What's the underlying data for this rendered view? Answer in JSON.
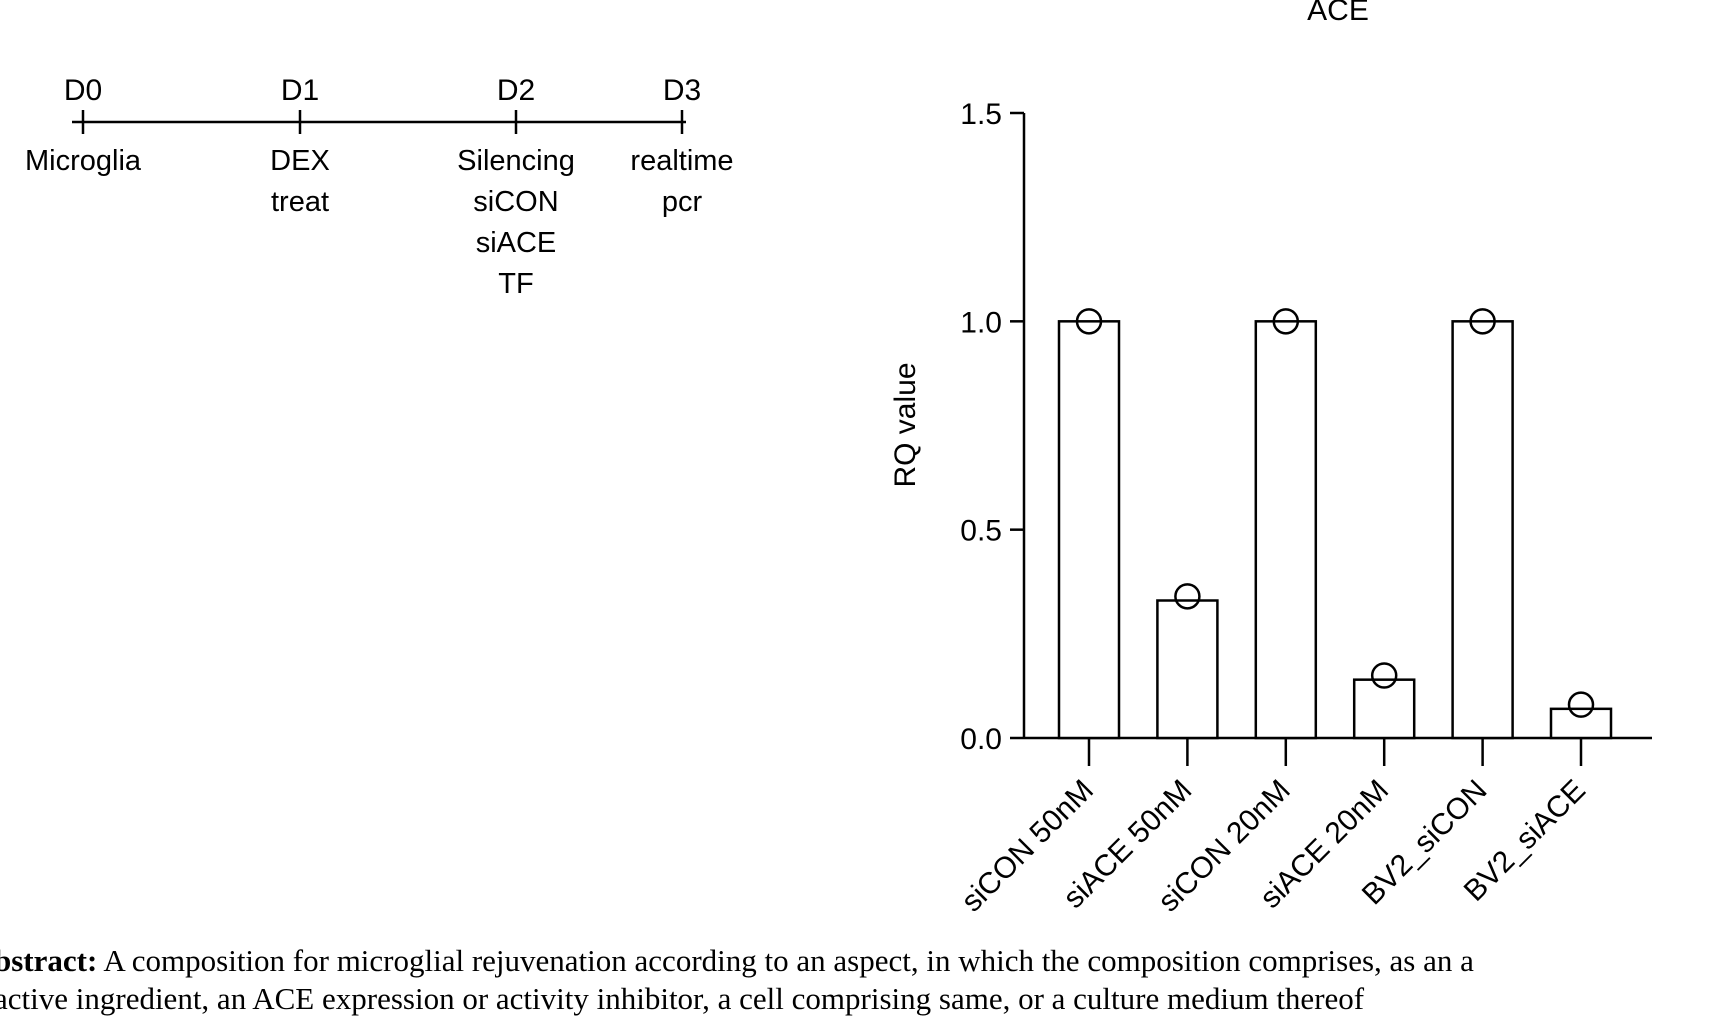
{
  "timeline": {
    "points": [
      {
        "day": "D0",
        "label_lines": [
          "Microglia"
        ]
      },
      {
        "day": "D1",
        "label_lines": [
          "DEX",
          "treat"
        ]
      },
      {
        "day": "D2",
        "label_lines": [
          "Silencing",
          "siCON",
          "siACE",
          "TF"
        ]
      },
      {
        "day": "D3",
        "label_lines": [
          "realtime",
          "pcr"
        ]
      }
    ]
  },
  "chart_data": {
    "type": "bar",
    "title": "ACE",
    "xlabel": "",
    "ylabel": "RQ value",
    "ylim": [
      0,
      1.5
    ],
    "yticks": [
      "0.0",
      "0.5",
      "1.0",
      "1.5"
    ],
    "yticks_values": [
      0,
      0.5,
      1.0,
      1.5
    ],
    "categories": [
      "siCON 50nM",
      "siACE 50nM",
      "siCON 20nM",
      "siACE 20nM",
      "BV2_siCON",
      "BV2_siACE"
    ],
    "values": [
      1.0,
      0.33,
      1.0,
      0.14,
      1.0,
      0.07
    ],
    "points": [
      1.0,
      0.34,
      1.0,
      0.15,
      1.0,
      0.08
    ]
  },
  "abstract": {
    "label": "bstract:",
    "line1": "A composition for microglial rejuvenation according to an aspect, in which the composition comprises, as an a",
    "line2": "active ingredient, an ACE expression or activity inhibitor, a cell comprising same, or a culture medium thereof"
  }
}
